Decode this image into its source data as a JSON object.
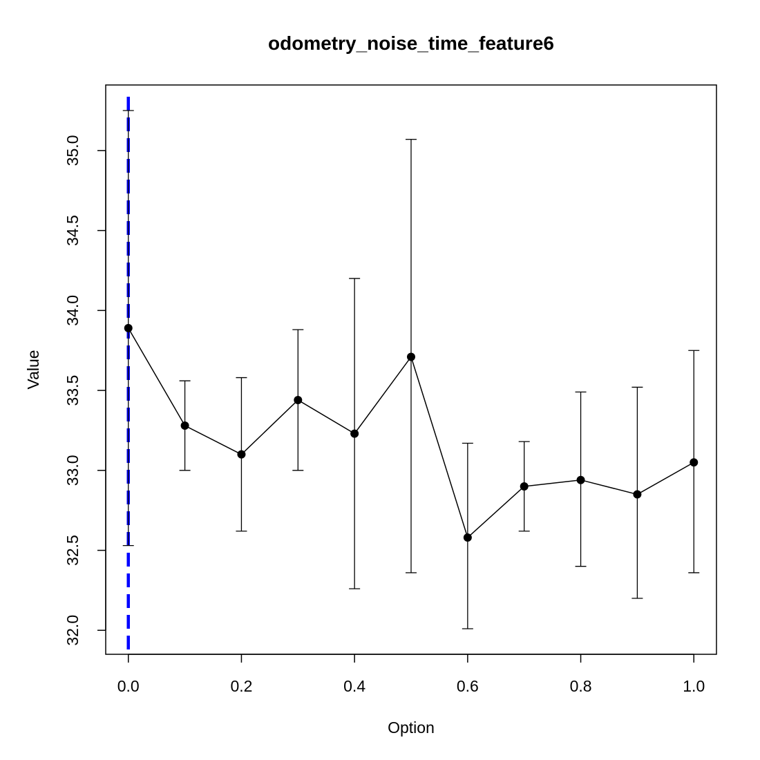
{
  "chart_data": {
    "type": "line",
    "title": "odometry_noise_time_feature6",
    "xlabel": "Option",
    "ylabel": "Value",
    "x": [
      0.0,
      0.1,
      0.2,
      0.3,
      0.4,
      0.5,
      0.6,
      0.7,
      0.8,
      0.9,
      1.0
    ],
    "y": [
      33.89,
      33.28,
      33.1,
      33.44,
      33.23,
      33.71,
      32.58,
      32.9,
      32.94,
      32.85,
      33.05
    ],
    "error_lower": [
      32.53,
      33.0,
      32.62,
      33.0,
      32.26,
      32.36,
      32.01,
      32.62,
      32.4,
      32.2,
      32.36
    ],
    "error_upper": [
      35.25,
      33.56,
      33.58,
      33.88,
      34.2,
      35.07,
      33.17,
      33.18,
      33.49,
      33.52,
      33.75
    ],
    "xlim": [
      -0.04,
      1.04
    ],
    "ylim": [
      31.85,
      35.41
    ],
    "xticks": [
      0.0,
      0.2,
      0.4,
      0.6,
      0.8,
      1.0
    ],
    "xtick_labels": [
      "0.0",
      "0.2",
      "0.4",
      "0.6",
      "0.8",
      "1.0"
    ],
    "yticks": [
      32.0,
      32.5,
      33.0,
      33.5,
      34.0,
      34.5,
      35.0
    ],
    "ytick_labels": [
      "32.0",
      "32.5",
      "33.0",
      "33.5",
      "34.0",
      "34.5",
      "35.0"
    ],
    "vertical_reference_line": {
      "x": 0.0,
      "style": "dashed",
      "color": "#0000ff"
    },
    "series_color": "#000000",
    "grid": false
  }
}
